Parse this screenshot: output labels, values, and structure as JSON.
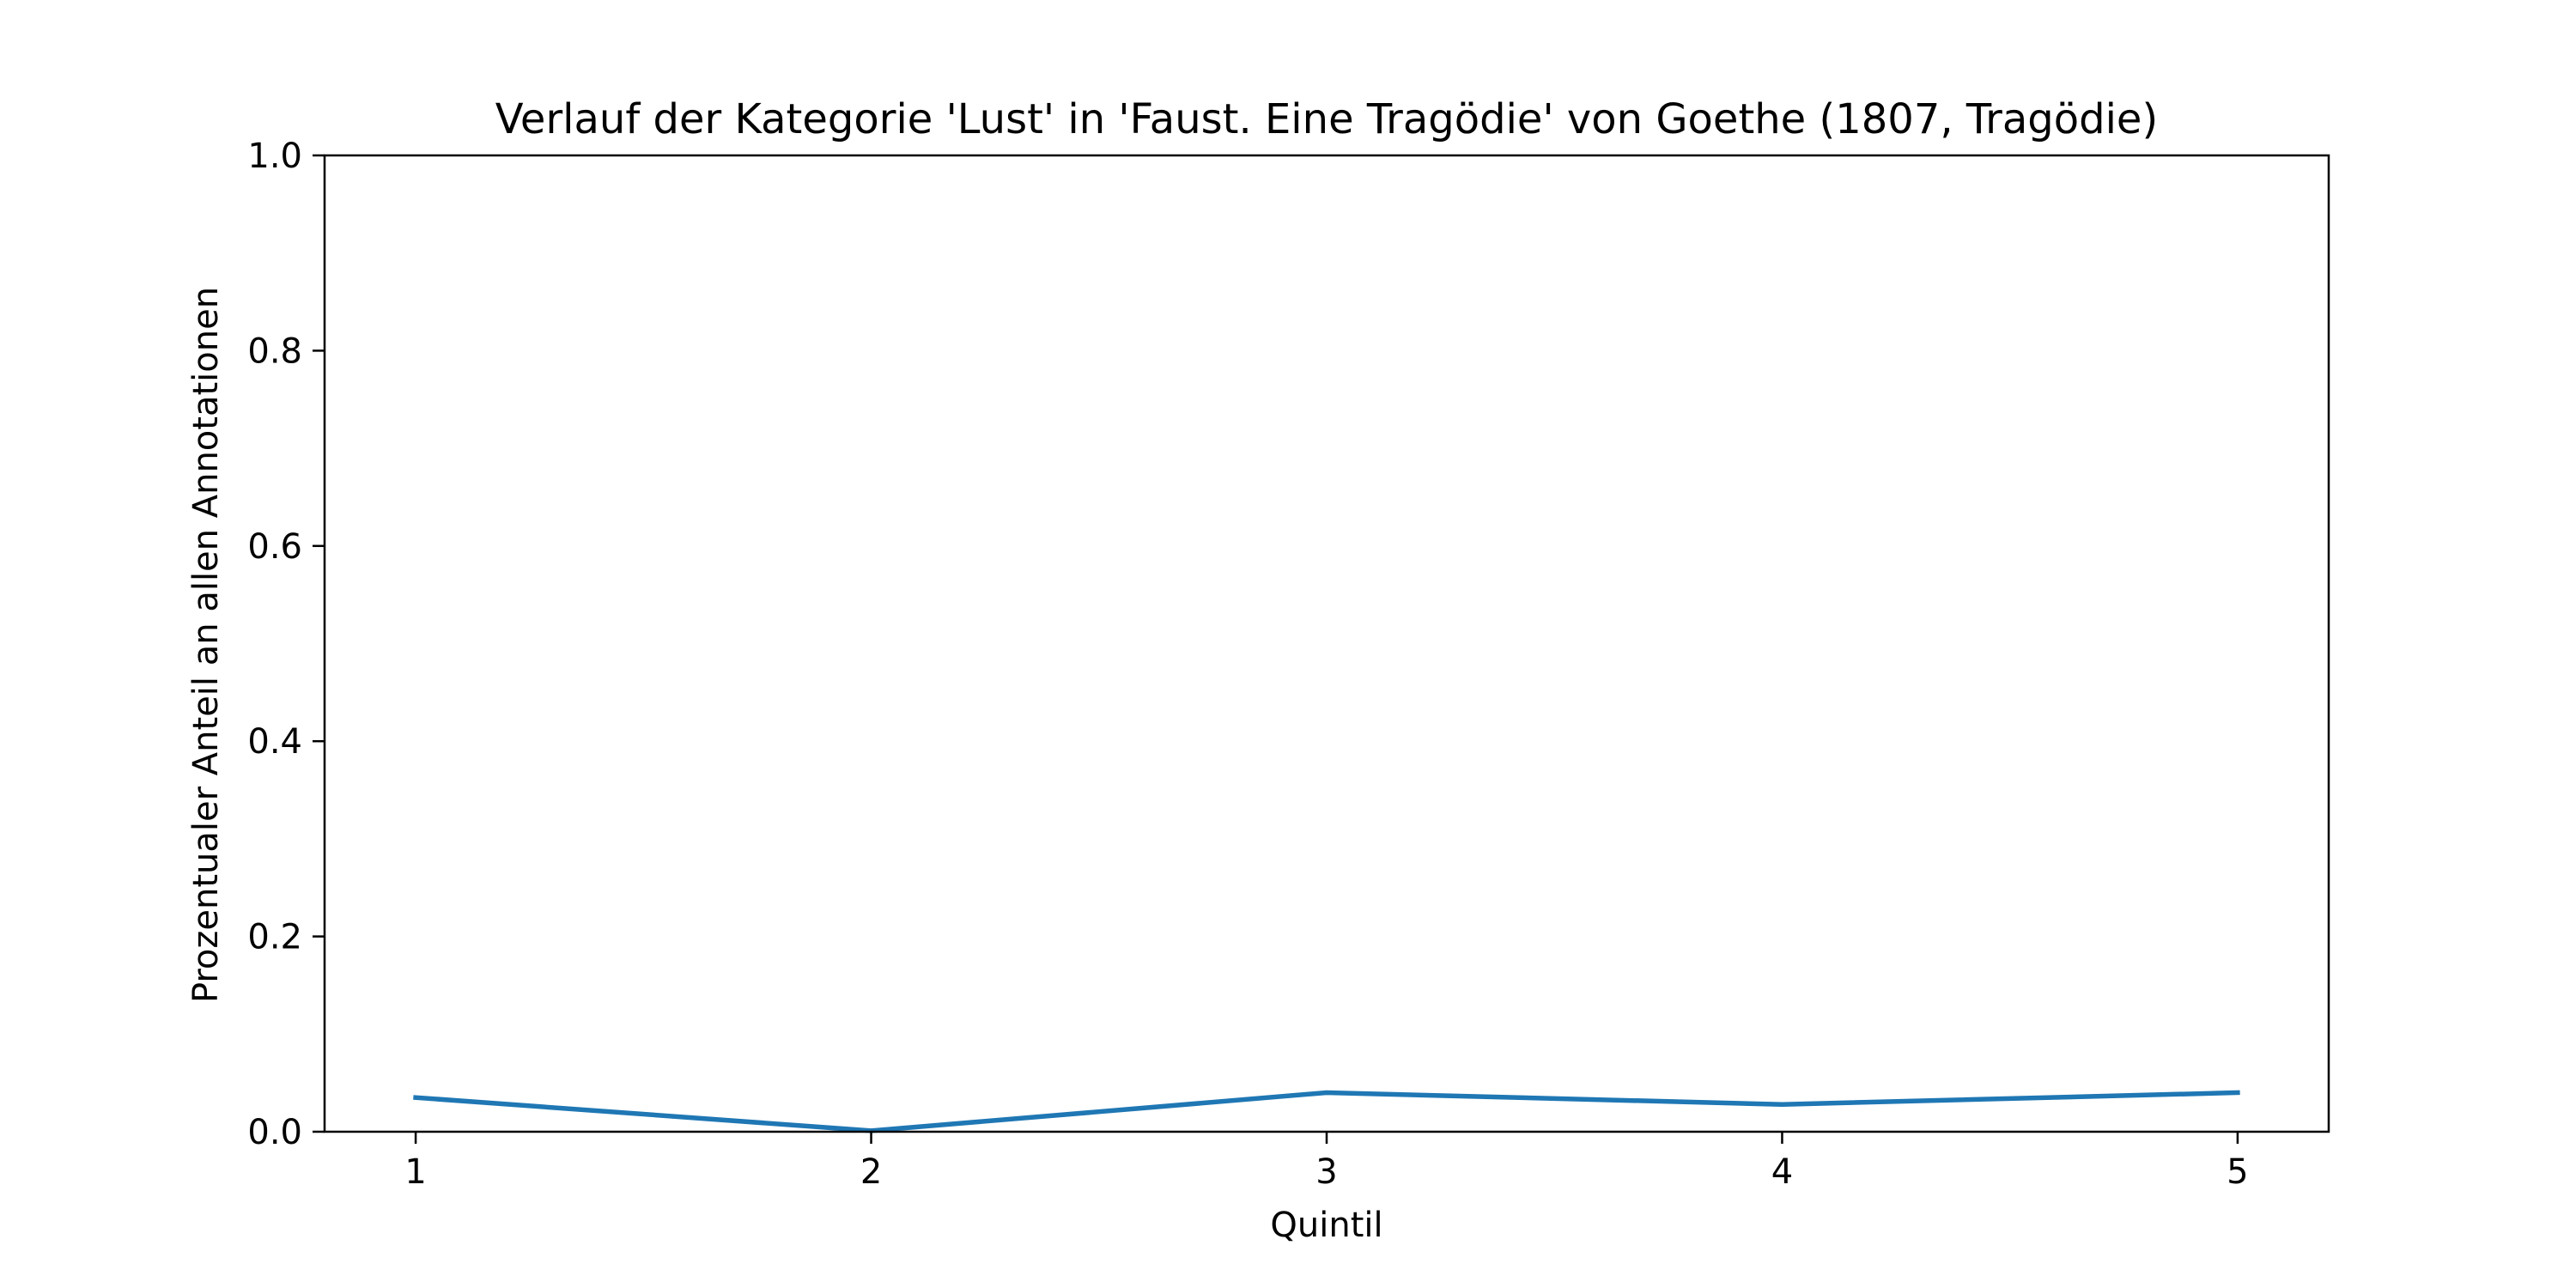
{
  "chart_data": {
    "type": "line",
    "title": "Verlauf der Kategorie 'Lust' in 'Faust. Eine Tragödie' von Goethe (1807, Tragödie)",
    "xlabel": "Quintil",
    "ylabel": "Prozentualer Anteil an allen Annotationen",
    "x": [
      1,
      2,
      3,
      4,
      5
    ],
    "series": [
      {
        "values": [
          0.035,
          0.001,
          0.04,
          0.028,
          0.04
        ]
      }
    ],
    "xlim": [
      0.8,
      5.2
    ],
    "ylim": [
      0,
      1.0
    ],
    "xticks": [
      "1",
      "2",
      "3",
      "4",
      "5"
    ],
    "yticks": [
      "0.0",
      "0.2",
      "0.4",
      "0.6",
      "0.8",
      "1.0"
    ],
    "grid": false,
    "colors": {
      "series": "#1f77b4",
      "axes": "#000000"
    }
  }
}
